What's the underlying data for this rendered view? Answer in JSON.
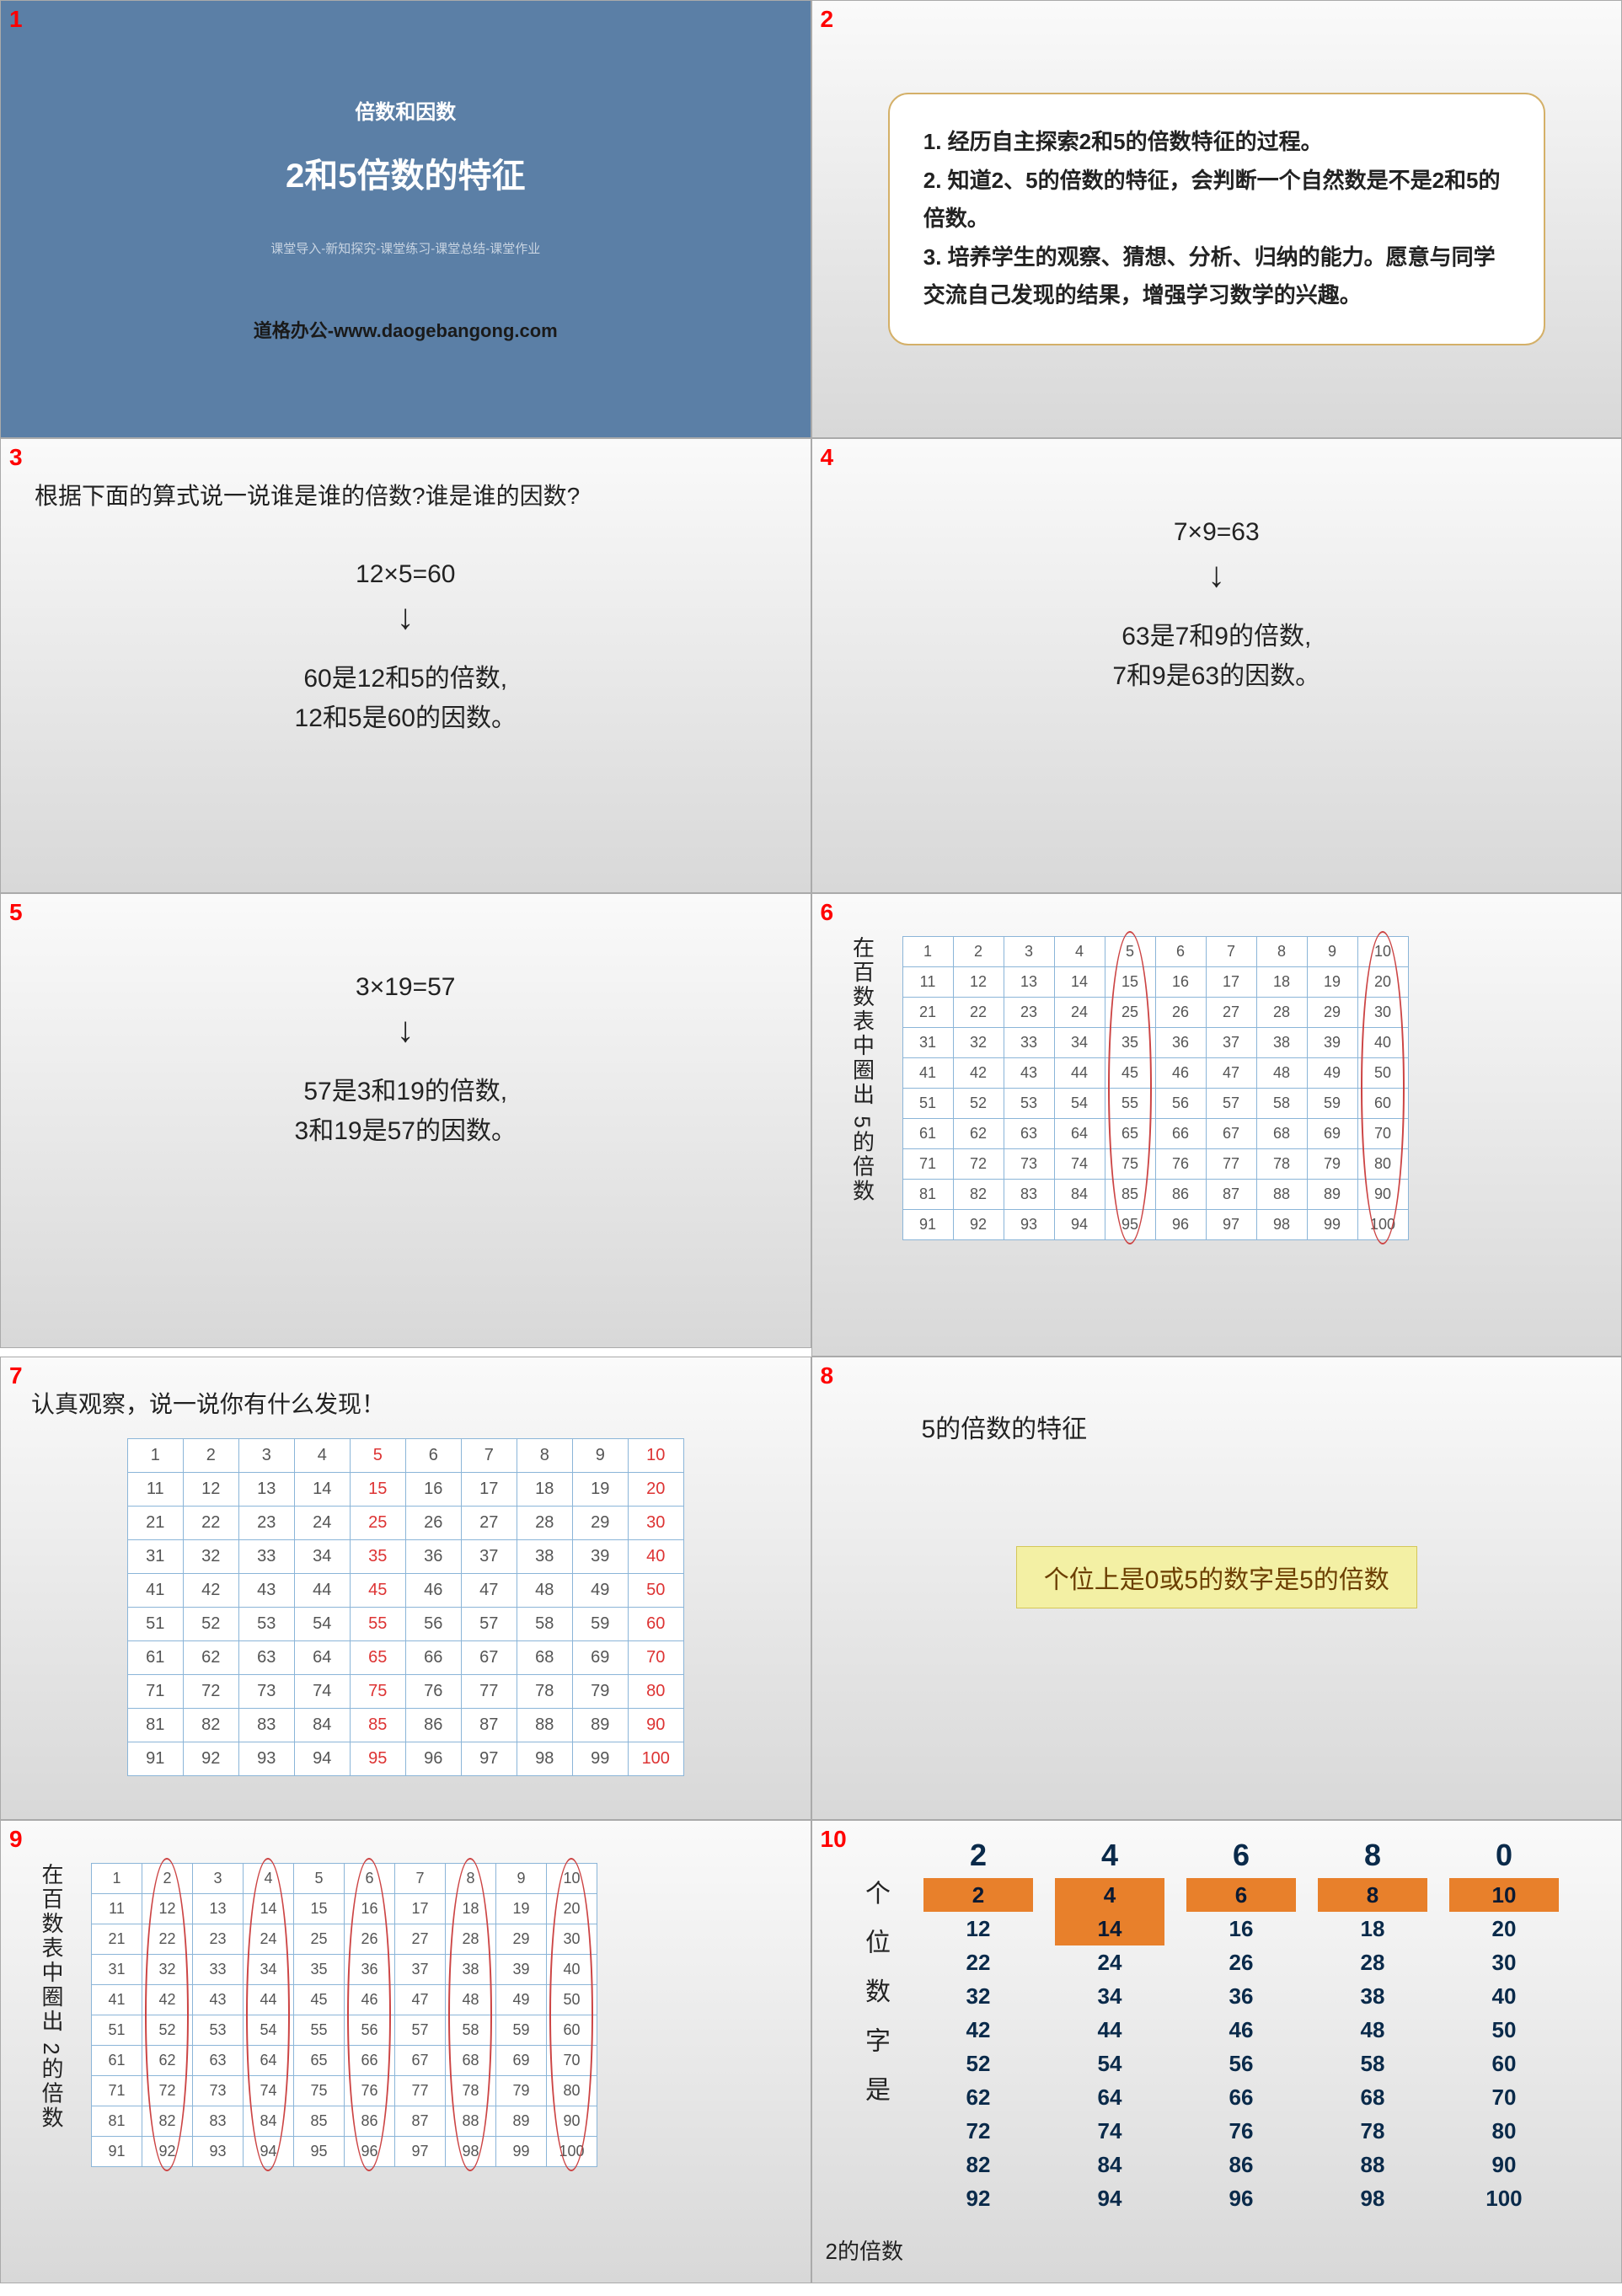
{
  "slides": {
    "s1": {
      "num": "1",
      "sub": "倍数和因数",
      "title": "2和5倍数的特征",
      "stages": "课堂导入-新知探究-课堂练习-课堂总结-课堂作业",
      "brand": "道格办公-www.daogebangong.com",
      "bg": "#5b7fa6"
    },
    "s2": {
      "num": "2",
      "text": "1. 经历自主探索2和5的倍数特征的过程。\n2. 知道2、5的倍数的特征，会判断一个自然数是不是2和5的倍数。\n3. 培养学生的观察、猜想、分析、归纳的能力。愿意与同学交流自己发现的结果，增强学习数学的兴趣。",
      "card_border": "#d4b068"
    },
    "s3": {
      "num": "3",
      "question": "根据下面的算式说一说谁是谁的倍数?谁是谁的因数?",
      "eq": "12×5=60",
      "ans": "60是12和5的倍数,\n12和5是60的因数。"
    },
    "s4": {
      "num": "4",
      "eq": "7×9=63",
      "ans": "63是7和9的倍数,\n7和9是63的因数。"
    },
    "s5": {
      "num": "5",
      "eq": "3×19=57",
      "ans": "57是3和19的倍数,\n3和19是57的因数。"
    },
    "s6": {
      "num": "6",
      "vtext": "在百数表中圈出 5的倍数",
      "circle_cols": [
        5,
        10
      ]
    },
    "s7": {
      "num": "7",
      "question": "认真观察，说一说你有什么发现！",
      "highlight_mod": 5
    },
    "s8": {
      "num": "8",
      "heading": "5的倍数的特征",
      "rule": "个位上是0或5的数字是5的倍数",
      "rule_bg": "#f3f0a4",
      "rule_color": "#6b3e00"
    },
    "s9": {
      "num": "9",
      "vtext": "在百数表中圈出 2的倍数",
      "circle_cols": [
        2,
        4,
        6,
        8,
        10
      ]
    },
    "s10": {
      "num": "10",
      "vtext": "个 位 数 字 是",
      "footer": "2的倍数",
      "heads": [
        "2",
        "4",
        "6",
        "8",
        "0"
      ],
      "highlight_rows": {
        "0": 1,
        "1": 1,
        "2": 1,
        "3": 1,
        "4": 1
      },
      "highlight_extra": {
        "1": 2
      },
      "columns": [
        [
          "2",
          "12",
          "22",
          "32",
          "42",
          "52",
          "62",
          "72",
          "82",
          "92"
        ],
        [
          "4",
          "14",
          "24",
          "34",
          "44",
          "54",
          "64",
          "74",
          "84",
          "94"
        ],
        [
          "6",
          "16",
          "26",
          "36",
          "46",
          "56",
          "66",
          "76",
          "86",
          "96"
        ],
        [
          "8",
          "18",
          "28",
          "38",
          "48",
          "58",
          "68",
          "78",
          "88",
          "98"
        ],
        [
          "10",
          "20",
          "30",
          "40",
          "50",
          "60",
          "70",
          "80",
          "90",
          "100"
        ]
      ],
      "hl_bg": "#e8802b",
      "text_color": "#0a2a4a"
    }
  },
  "hundred_table": {
    "rows": 10,
    "cols": 10
  }
}
